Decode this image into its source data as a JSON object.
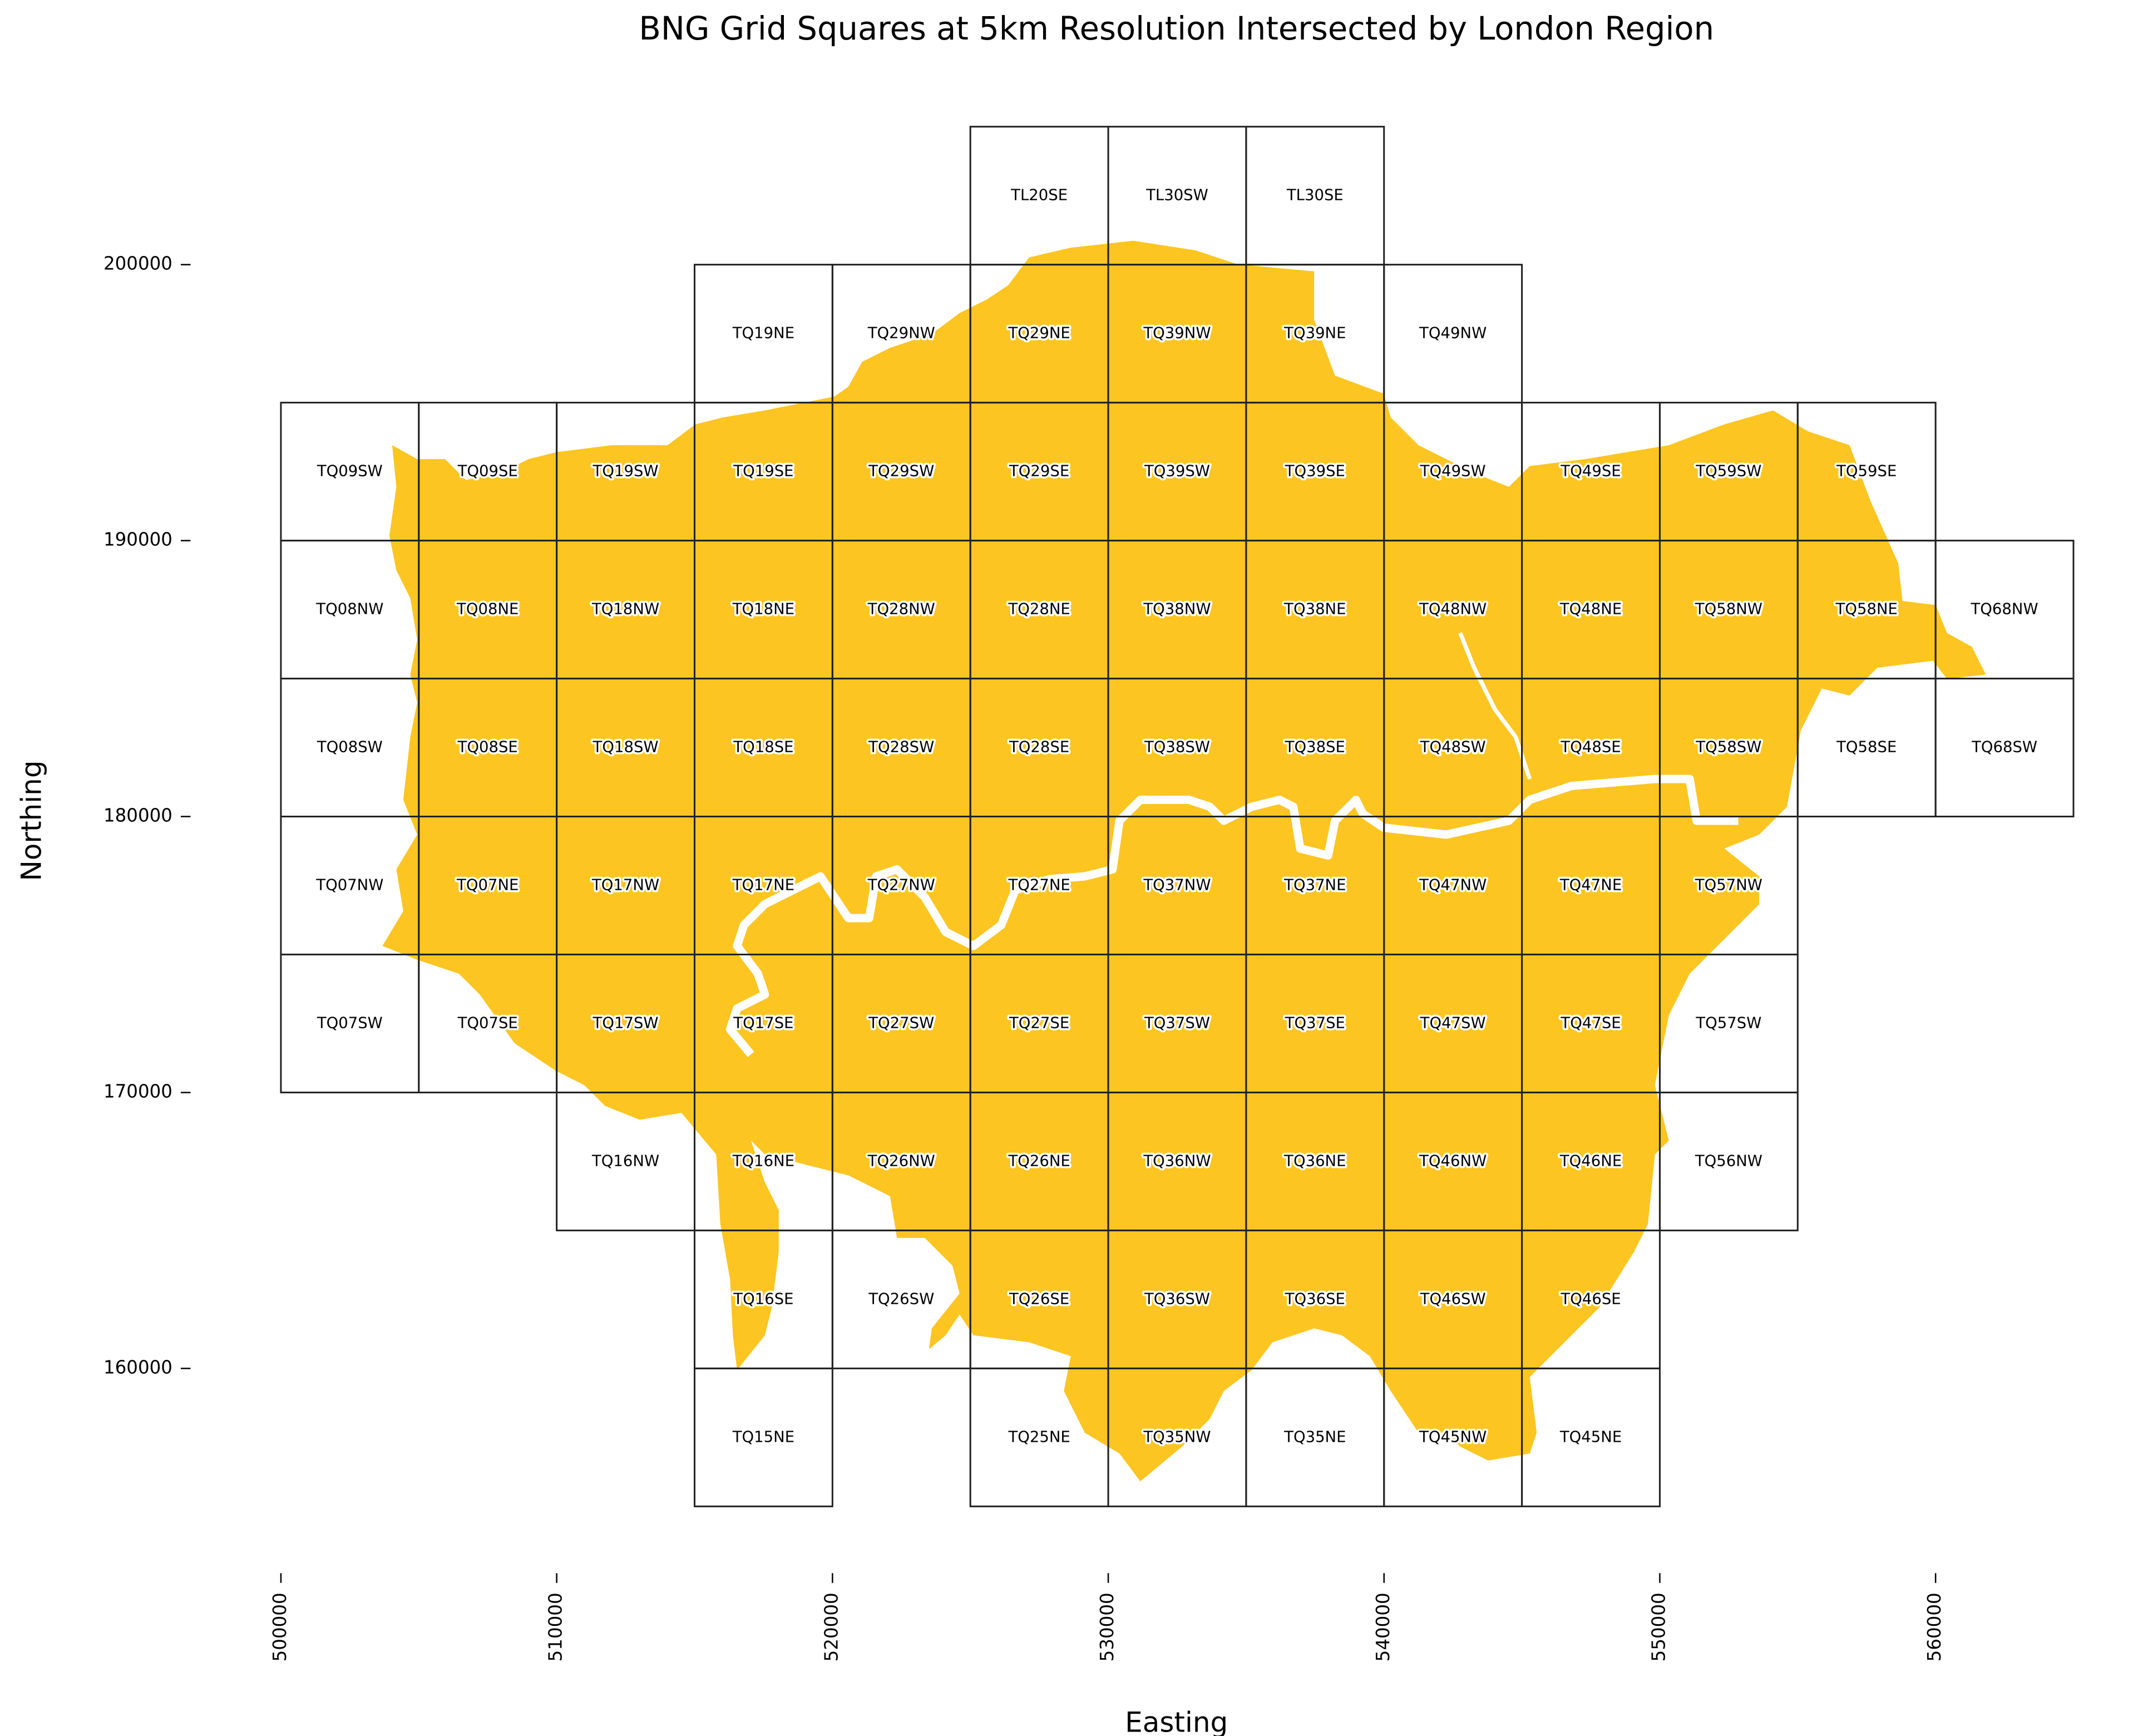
{
  "chart_data": {
    "type": "map",
    "title": "BNG Grid Squares at 5km Resolution Intersected by London Region",
    "xlabel": "Easting",
    "ylabel": "Northing",
    "xlim": [
      500000,
      565000
    ],
    "ylim": [
      155000,
      205000
    ],
    "xticks": [
      500000,
      510000,
      520000,
      530000,
      540000,
      550000,
      560000
    ],
    "yticks": [
      160000,
      170000,
      180000,
      190000,
      200000
    ],
    "color": "#fdc521",
    "edgecolor": "#222222",
    "squares": [
      {
        "label": "TL20SE",
        "x": [
          525000,
          530000
        ],
        "y": [
          200000,
          205000
        ]
      },
      {
        "label": "TL30SW",
        "x": [
          530000,
          535000
        ],
        "y": [
          200000,
          205000
        ]
      },
      {
        "label": "TL30SE",
        "x": [
          535000,
          540000
        ],
        "y": [
          200000,
          205000
        ]
      },
      {
        "label": "TQ19NE",
        "x": [
          515000,
          520000
        ],
        "y": [
          195000,
          200000
        ]
      },
      {
        "label": "TQ29NW",
        "x": [
          520000,
          525000
        ],
        "y": [
          195000,
          200000
        ]
      },
      {
        "label": "TQ29NE",
        "x": [
          525000,
          530000
        ],
        "y": [
          195000,
          200000
        ]
      },
      {
        "label": "TQ39NW",
        "x": [
          530000,
          535000
        ],
        "y": [
          195000,
          200000
        ]
      },
      {
        "label": "TQ39NE",
        "x": [
          535000,
          540000
        ],
        "y": [
          195000,
          200000
        ]
      },
      {
        "label": "TQ49NW",
        "x": [
          540000,
          545000
        ],
        "y": [
          195000,
          200000
        ]
      },
      {
        "label": "TQ09SW",
        "x": [
          500000,
          505000
        ],
        "y": [
          190000,
          195000
        ]
      },
      {
        "label": "TQ09SE",
        "x": [
          505000,
          510000
        ],
        "y": [
          190000,
          195000
        ]
      },
      {
        "label": "TQ19SW",
        "x": [
          510000,
          515000
        ],
        "y": [
          190000,
          195000
        ]
      },
      {
        "label": "TQ19SE",
        "x": [
          515000,
          520000
        ],
        "y": [
          190000,
          195000
        ]
      },
      {
        "label": "TQ29SW",
        "x": [
          520000,
          525000
        ],
        "y": [
          190000,
          195000
        ]
      },
      {
        "label": "TQ29SE",
        "x": [
          525000,
          530000
        ],
        "y": [
          190000,
          195000
        ]
      },
      {
        "label": "TQ39SW",
        "x": [
          530000,
          535000
        ],
        "y": [
          190000,
          195000
        ]
      },
      {
        "label": "TQ39SE",
        "x": [
          535000,
          540000
        ],
        "y": [
          190000,
          195000
        ]
      },
      {
        "label": "TQ49SW",
        "x": [
          540000,
          545000
        ],
        "y": [
          190000,
          195000
        ]
      },
      {
        "label": "TQ49SE",
        "x": [
          545000,
          550000
        ],
        "y": [
          190000,
          195000
        ]
      },
      {
        "label": "TQ59SW",
        "x": [
          550000,
          555000
        ],
        "y": [
          190000,
          195000
        ]
      },
      {
        "label": "TQ59SE",
        "x": [
          555000,
          560000
        ],
        "y": [
          190000,
          195000
        ]
      },
      {
        "label": "TQ08NW",
        "x": [
          500000,
          505000
        ],
        "y": [
          185000,
          190000
        ]
      },
      {
        "label": "TQ08NE",
        "x": [
          505000,
          510000
        ],
        "y": [
          185000,
          190000
        ]
      },
      {
        "label": "TQ18NW",
        "x": [
          510000,
          515000
        ],
        "y": [
          185000,
          190000
        ]
      },
      {
        "label": "TQ18NE",
        "x": [
          515000,
          520000
        ],
        "y": [
          185000,
          190000
        ]
      },
      {
        "label": "TQ28NW",
        "x": [
          520000,
          525000
        ],
        "y": [
          185000,
          190000
        ]
      },
      {
        "label": "TQ28NE",
        "x": [
          525000,
          530000
        ],
        "y": [
          185000,
          190000
        ]
      },
      {
        "label": "TQ38NW",
        "x": [
          530000,
          535000
        ],
        "y": [
          185000,
          190000
        ]
      },
      {
        "label": "TQ38NE",
        "x": [
          535000,
          540000
        ],
        "y": [
          185000,
          190000
        ]
      },
      {
        "label": "TQ48NW",
        "x": [
          540000,
          545000
        ],
        "y": [
          185000,
          190000
        ]
      },
      {
        "label": "TQ48NE",
        "x": [
          545000,
          550000
        ],
        "y": [
          185000,
          190000
        ]
      },
      {
        "label": "TQ58NW",
        "x": [
          550000,
          555000
        ],
        "y": [
          185000,
          190000
        ]
      },
      {
        "label": "TQ58NE",
        "x": [
          555000,
          560000
        ],
        "y": [
          185000,
          190000
        ]
      },
      {
        "label": "TQ68NW",
        "x": [
          560000,
          565000
        ],
        "y": [
          185000,
          190000
        ]
      },
      {
        "label": "TQ08SW",
        "x": [
          500000,
          505000
        ],
        "y": [
          180000,
          185000
        ]
      },
      {
        "label": "TQ08SE",
        "x": [
          505000,
          510000
        ],
        "y": [
          180000,
          185000
        ]
      },
      {
        "label": "TQ18SW",
        "x": [
          510000,
          515000
        ],
        "y": [
          180000,
          185000
        ]
      },
      {
        "label": "TQ18SE",
        "x": [
          515000,
          520000
        ],
        "y": [
          180000,
          185000
        ]
      },
      {
        "label": "TQ28SW",
        "x": [
          520000,
          525000
        ],
        "y": [
          180000,
          185000
        ]
      },
      {
        "label": "TQ28SE",
        "x": [
          525000,
          530000
        ],
        "y": [
          180000,
          185000
        ]
      },
      {
        "label": "TQ38SW",
        "x": [
          530000,
          535000
        ],
        "y": [
          180000,
          185000
        ]
      },
      {
        "label": "TQ38SE",
        "x": [
          535000,
          540000
        ],
        "y": [
          180000,
          185000
        ]
      },
      {
        "label": "TQ48SW",
        "x": [
          540000,
          545000
        ],
        "y": [
          180000,
          185000
        ]
      },
      {
        "label": "TQ48SE",
        "x": [
          545000,
          550000
        ],
        "y": [
          180000,
          185000
        ]
      },
      {
        "label": "TQ58SW",
        "x": [
          550000,
          555000
        ],
        "y": [
          180000,
          185000
        ]
      },
      {
        "label": "TQ58SE",
        "x": [
          555000,
          560000
        ],
        "y": [
          180000,
          185000
        ]
      },
      {
        "label": "TQ68SW",
        "x": [
          560000,
          565000
        ],
        "y": [
          180000,
          185000
        ]
      },
      {
        "label": "TQ07NW",
        "x": [
          500000,
          505000
        ],
        "y": [
          175000,
          180000
        ]
      },
      {
        "label": "TQ07NE",
        "x": [
          505000,
          510000
        ],
        "y": [
          175000,
          180000
        ]
      },
      {
        "label": "TQ17NW",
        "x": [
          510000,
          515000
        ],
        "y": [
          175000,
          180000
        ]
      },
      {
        "label": "TQ17NE",
        "x": [
          515000,
          520000
        ],
        "y": [
          175000,
          180000
        ]
      },
      {
        "label": "TQ27NW",
        "x": [
          520000,
          525000
        ],
        "y": [
          175000,
          180000
        ]
      },
      {
        "label": "TQ27NE",
        "x": [
          525000,
          530000
        ],
        "y": [
          175000,
          180000
        ]
      },
      {
        "label": "TQ37NW",
        "x": [
          530000,
          535000
        ],
        "y": [
          175000,
          180000
        ]
      },
      {
        "label": "TQ37NE",
        "x": [
          535000,
          540000
        ],
        "y": [
          175000,
          180000
        ]
      },
      {
        "label": "TQ47NW",
        "x": [
          540000,
          545000
        ],
        "y": [
          175000,
          180000
        ]
      },
      {
        "label": "TQ47NE",
        "x": [
          545000,
          550000
        ],
        "y": [
          175000,
          180000
        ]
      },
      {
        "label": "TQ57NW",
        "x": [
          550000,
          555000
        ],
        "y": [
          175000,
          180000
        ]
      },
      {
        "label": "TQ07SW",
        "x": [
          500000,
          505000
        ],
        "y": [
          170000,
          175000
        ]
      },
      {
        "label": "TQ07SE",
        "x": [
          505000,
          510000
        ],
        "y": [
          170000,
          175000
        ]
      },
      {
        "label": "TQ17SW",
        "x": [
          510000,
          515000
        ],
        "y": [
          170000,
          175000
        ]
      },
      {
        "label": "TQ17SE",
        "x": [
          515000,
          520000
        ],
        "y": [
          170000,
          175000
        ]
      },
      {
        "label": "TQ27SW",
        "x": [
          520000,
          525000
        ],
        "y": [
          170000,
          175000
        ]
      },
      {
        "label": "TQ27SE",
        "x": [
          525000,
          530000
        ],
        "y": [
          170000,
          175000
        ]
      },
      {
        "label": "TQ37SW",
        "x": [
          530000,
          535000
        ],
        "y": [
          170000,
          175000
        ]
      },
      {
        "label": "TQ37SE",
        "x": [
          535000,
          540000
        ],
        "y": [
          170000,
          175000
        ]
      },
      {
        "label": "TQ47SW",
        "x": [
          540000,
          545000
        ],
        "y": [
          170000,
          175000
        ]
      },
      {
        "label": "TQ47SE",
        "x": [
          545000,
          550000
        ],
        "y": [
          170000,
          175000
        ]
      },
      {
        "label": "TQ57SW",
        "x": [
          550000,
          555000
        ],
        "y": [
          170000,
          175000
        ]
      },
      {
        "label": "TQ16NW",
        "x": [
          510000,
          515000
        ],
        "y": [
          165000,
          170000
        ]
      },
      {
        "label": "TQ16NE",
        "x": [
          515000,
          520000
        ],
        "y": [
          165000,
          170000
        ]
      },
      {
        "label": "TQ26NW",
        "x": [
          520000,
          525000
        ],
        "y": [
          165000,
          170000
        ]
      },
      {
        "label": "TQ26NE",
        "x": [
          525000,
          530000
        ],
        "y": [
          165000,
          170000
        ]
      },
      {
        "label": "TQ36NW",
        "x": [
          530000,
          535000
        ],
        "y": [
          165000,
          170000
        ]
      },
      {
        "label": "TQ36NE",
        "x": [
          535000,
          540000
        ],
        "y": [
          165000,
          170000
        ]
      },
      {
        "label": "TQ46NW",
        "x": [
          540000,
          545000
        ],
        "y": [
          165000,
          170000
        ]
      },
      {
        "label": "TQ46NE",
        "x": [
          545000,
          550000
        ],
        "y": [
          165000,
          170000
        ]
      },
      {
        "label": "TQ56NW",
        "x": [
          550000,
          555000
        ],
        "y": [
          165000,
          170000
        ]
      },
      {
        "label": "TQ16SE",
        "x": [
          515000,
          520000
        ],
        "y": [
          160000,
          165000
        ]
      },
      {
        "label": "TQ26SW",
        "x": [
          520000,
          525000
        ],
        "y": [
          160000,
          165000
        ]
      },
      {
        "label": "TQ26SE",
        "x": [
          525000,
          530000
        ],
        "y": [
          160000,
          165000
        ]
      },
      {
        "label": "TQ36SW",
        "x": [
          530000,
          535000
        ],
        "y": [
          160000,
          165000
        ]
      },
      {
        "label": "TQ36SE",
        "x": [
          535000,
          540000
        ],
        "y": [
          160000,
          165000
        ]
      },
      {
        "label": "TQ46SW",
        "x": [
          540000,
          545000
        ],
        "y": [
          160000,
          165000
        ]
      },
      {
        "label": "TQ46SE",
        "x": [
          545000,
          550000
        ],
        "y": [
          160000,
          165000
        ]
      },
      {
        "label": "TQ15NE",
        "x": [
          515000,
          520000
        ],
        "y": [
          155000,
          160000
        ]
      },
      {
        "label": "TQ25NE",
        "x": [
          525000,
          530000
        ],
        "y": [
          155000,
          160000
        ]
      },
      {
        "label": "TQ35NW",
        "x": [
          530000,
          535000
        ],
        "y": [
          155000,
          160000
        ]
      },
      {
        "label": "TQ35NE",
        "x": [
          535000,
          540000
        ],
        "y": [
          155000,
          160000
        ]
      },
      {
        "label": "TQ45NW",
        "x": [
          540000,
          545000
        ],
        "y": [
          155000,
          160000
        ]
      },
      {
        "label": "TQ45NE",
        "x": [
          545000,
          550000
        ],
        "y": [
          155000,
          160000
        ]
      }
    ]
  }
}
